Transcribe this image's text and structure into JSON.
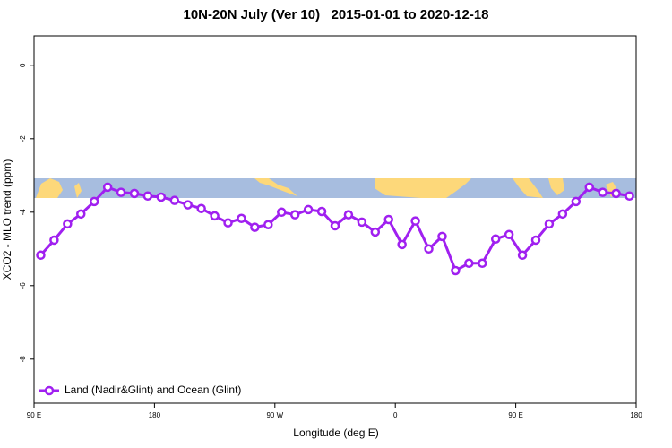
{
  "chart_data": {
    "type": "line",
    "title": "10N-20N July (Ver 10)   2015-01-01 to 2020-12-18",
    "x_label": "Longitude (deg E)",
    "y_label": "XCO2 - MLO trend (ppm)",
    "x": [
      95,
      105,
      115,
      125,
      135,
      145,
      155,
      165,
      175,
      185,
      195,
      205,
      215,
      225,
      235,
      245,
      255,
      265,
      275,
      285,
      295,
      305,
      315,
      325,
      335,
      345,
      355,
      365,
      375,
      385,
      395,
      405,
      415,
      425,
      435,
      445,
      455,
      465,
      475,
      485,
      495,
      505,
      515,
      525,
      535
    ],
    "series": [
      {
        "name": "Land (Nadir&Glint) and Ocean (Glint)",
        "color": "#a020f0",
        "values": [
          -5.17,
          -4.76,
          -4.32,
          -4.05,
          -3.71,
          -3.32,
          -3.46,
          -3.49,
          -3.56,
          -3.59,
          -3.68,
          -3.8,
          -3.9,
          -4.1,
          -4.29,
          -4.17,
          -4.41,
          -4.34,
          -4.0,
          -4.07,
          -3.93,
          -3.98,
          -4.37,
          -4.07,
          -4.27,
          -4.54,
          -4.2,
          -4.88,
          -4.24,
          -5.0,
          -4.66,
          -5.59,
          -5.39,
          -5.39,
          -4.73,
          -4.61,
          -5.17,
          -4.76,
          -4.32,
          -4.05,
          -3.71,
          -3.32,
          -3.46,
          -3.49,
          -3.56
        ]
      }
    ],
    "xlim": [
      90,
      540
    ],
    "xticks": [
      {
        "value": 90,
        "label": "90 E"
      },
      180,
      {
        "value": 270,
        "label": "90 W"
      },
      {
        "value": 360,
        "label": "0"
      },
      {
        "value": 450,
        "label": "90 E"
      },
      {
        "value": 540,
        "label": "180"
      }
    ],
    "ylim": [
      -9.2,
      0.8
    ],
    "yticks": [
      0,
      -2,
      -4,
      -6,
      -8
    ],
    "legend": "bottom-left",
    "grid": false
  }
}
